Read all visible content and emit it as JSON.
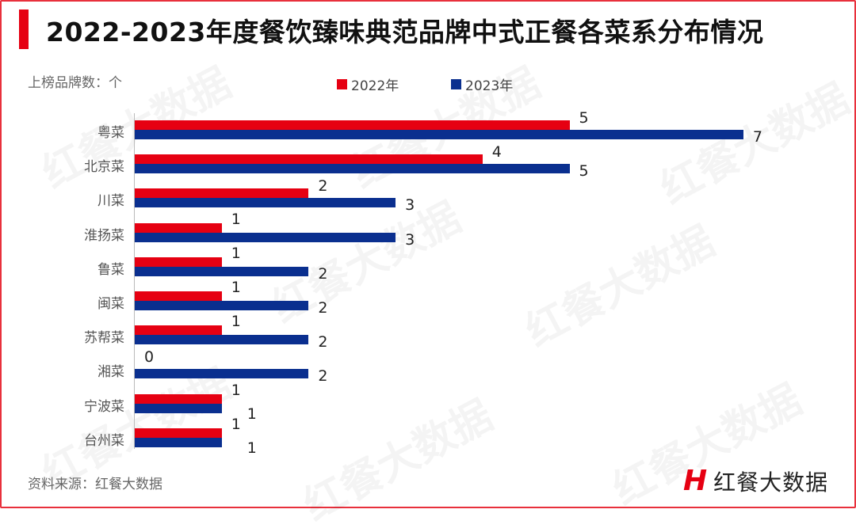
{
  "title": "2022-2023年度餐饮臻味典范品牌中式正餐各菜系分布情况",
  "unit_label": "上榜品牌数：个",
  "legend": [
    {
      "label": "2022年",
      "color": "#e60012"
    },
    {
      "label": "2023年",
      "color": "#0a2f8f"
    }
  ],
  "source": "资料来源：红餐大数据",
  "logo": {
    "mark": "H",
    "text": "红餐大数据"
  },
  "watermark": "红餐大数据",
  "chart_data": {
    "type": "bar",
    "orientation": "horizontal",
    "title": "2022-2023年度餐饮臻味典范品牌中式正餐各菜系分布情况",
    "xlabel": "上榜品牌数：个",
    "ylabel": "",
    "categories": [
      "粤菜",
      "北京菜",
      "川菜",
      "淮扬菜",
      "鲁菜",
      "闽菜",
      "苏帮菜",
      "湘菜",
      "宁波菜",
      "台州菜"
    ],
    "series": [
      {
        "name": "2022年",
        "color": "#e60012",
        "values": [
          5,
          4,
          2,
          1,
          1,
          1,
          1,
          0,
          1,
          1
        ]
      },
      {
        "name": "2023年",
        "color": "#0a2f8f",
        "values": [
          7,
          5,
          3,
          3,
          2,
          2,
          2,
          2,
          1,
          1
        ]
      }
    ],
    "xlim": [
      0,
      7
    ],
    "grid": false,
    "legend_position": "top",
    "data_labels": true
  }
}
